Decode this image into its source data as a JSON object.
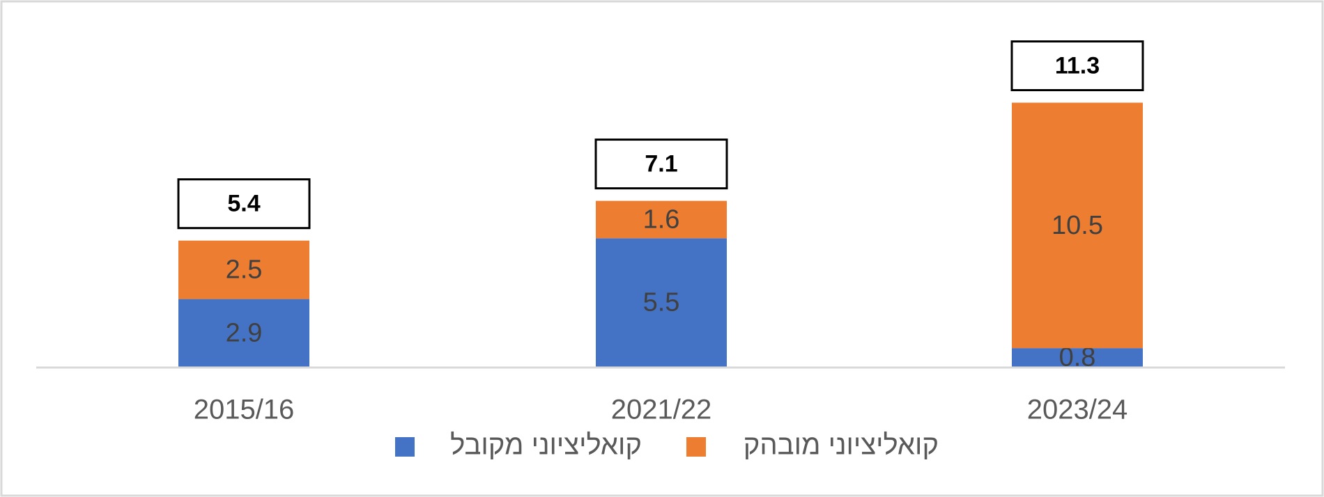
{
  "chart_data": {
    "type": "stacked_bar",
    "categories": [
      "2015/16",
      "2021/22",
      "2023/24"
    ],
    "series": [
      {
        "name": "קואליציוני מקובל",
        "color": "#4472c4",
        "values": [
          2.9,
          5.5,
          0.8
        ]
      },
      {
        "name": "קואליציוני מובהק",
        "color": "#ed7d31",
        "values": [
          2.5,
          1.6,
          10.5
        ]
      }
    ],
    "totals": [
      5.4,
      7.1,
      11.3
    ],
    "ylim": [
      0,
      12
    ],
    "grid": false
  }
}
